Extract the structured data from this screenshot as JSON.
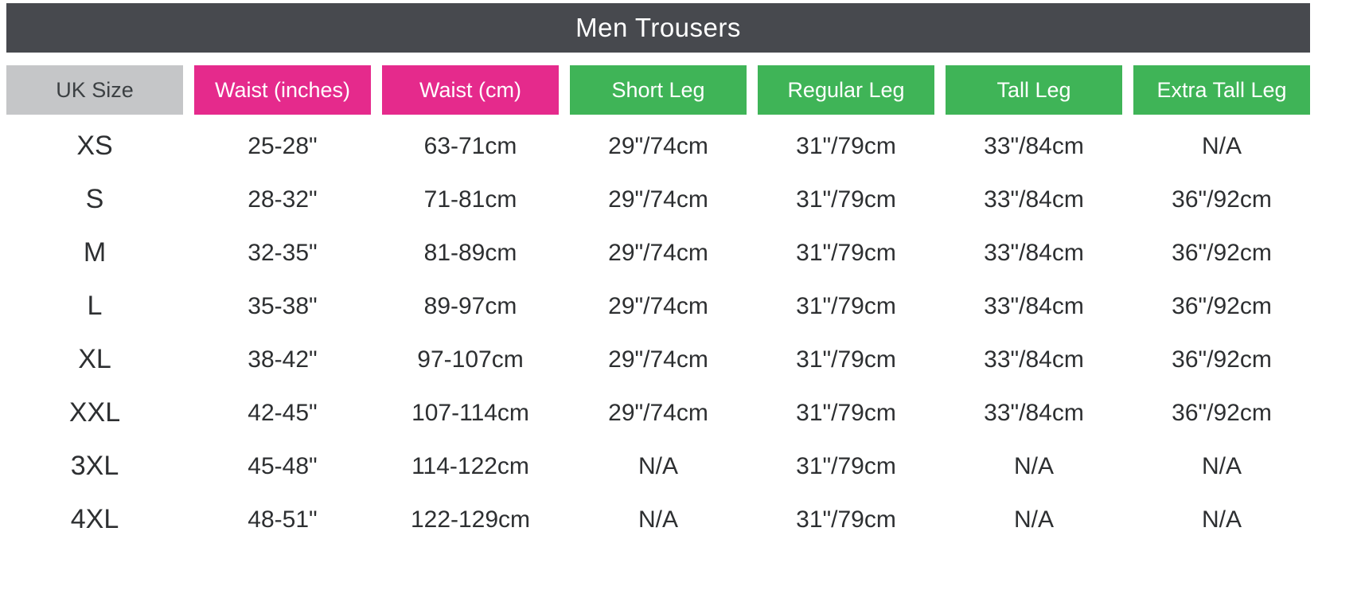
{
  "title": "Men Trousers",
  "colors": {
    "title_bar_bg": "#47494e",
    "title_text": "#ffffff",
    "uk_size_header_bg": "#c5c6c8",
    "uk_size_header_text": "#3c4043",
    "waist_header_bg": "#e52a8c",
    "leg_header_bg": "#3fb457",
    "header_text": "#ffffff",
    "cell_text": "#2d2f31",
    "background": "#ffffff"
  },
  "chart_data": {
    "type": "table",
    "title": "Men Trousers",
    "columns": [
      {
        "label": "UK Size",
        "style": "gray"
      },
      {
        "label": "Waist (inches)",
        "style": "pink"
      },
      {
        "label": "Waist (cm)",
        "style": "pink"
      },
      {
        "label": "Short Leg",
        "style": "green"
      },
      {
        "label": "Regular Leg",
        "style": "green"
      },
      {
        "label": "Tall Leg",
        "style": "green"
      },
      {
        "label": "Extra Tall Leg",
        "style": "green"
      }
    ],
    "rows": [
      [
        "XS",
        "25-28\"",
        "63-71cm",
        "29\"/74cm",
        "31\"/79cm",
        "33\"/84cm",
        "N/A"
      ],
      [
        "S",
        "28-32\"",
        "71-81cm",
        "29\"/74cm",
        "31\"/79cm",
        "33\"/84cm",
        "36\"/92cm"
      ],
      [
        "M",
        "32-35\"",
        "81-89cm",
        "29\"/74cm",
        "31\"/79cm",
        "33\"/84cm",
        "36\"/92cm"
      ],
      [
        "L",
        "35-38\"",
        "89-97cm",
        "29\"/74cm",
        "31\"/79cm",
        "33\"/84cm",
        "36\"/92cm"
      ],
      [
        "XL",
        "38-42\"",
        "97-107cm",
        "29\"/74cm",
        "31\"/79cm",
        "33\"/84cm",
        "36\"/92cm"
      ],
      [
        "XXL",
        "42-45\"",
        "107-114cm",
        "29\"/74cm",
        "31\"/79cm",
        "33\"/84cm",
        "36\"/92cm"
      ],
      [
        "3XL",
        "45-48\"",
        "114-122cm",
        "N/A",
        "31\"/79cm",
        "N/A",
        "N/A"
      ],
      [
        "4XL",
        "48-51\"",
        "122-129cm",
        "N/A",
        "31\"/79cm",
        "N/A",
        "N/A"
      ]
    ]
  }
}
